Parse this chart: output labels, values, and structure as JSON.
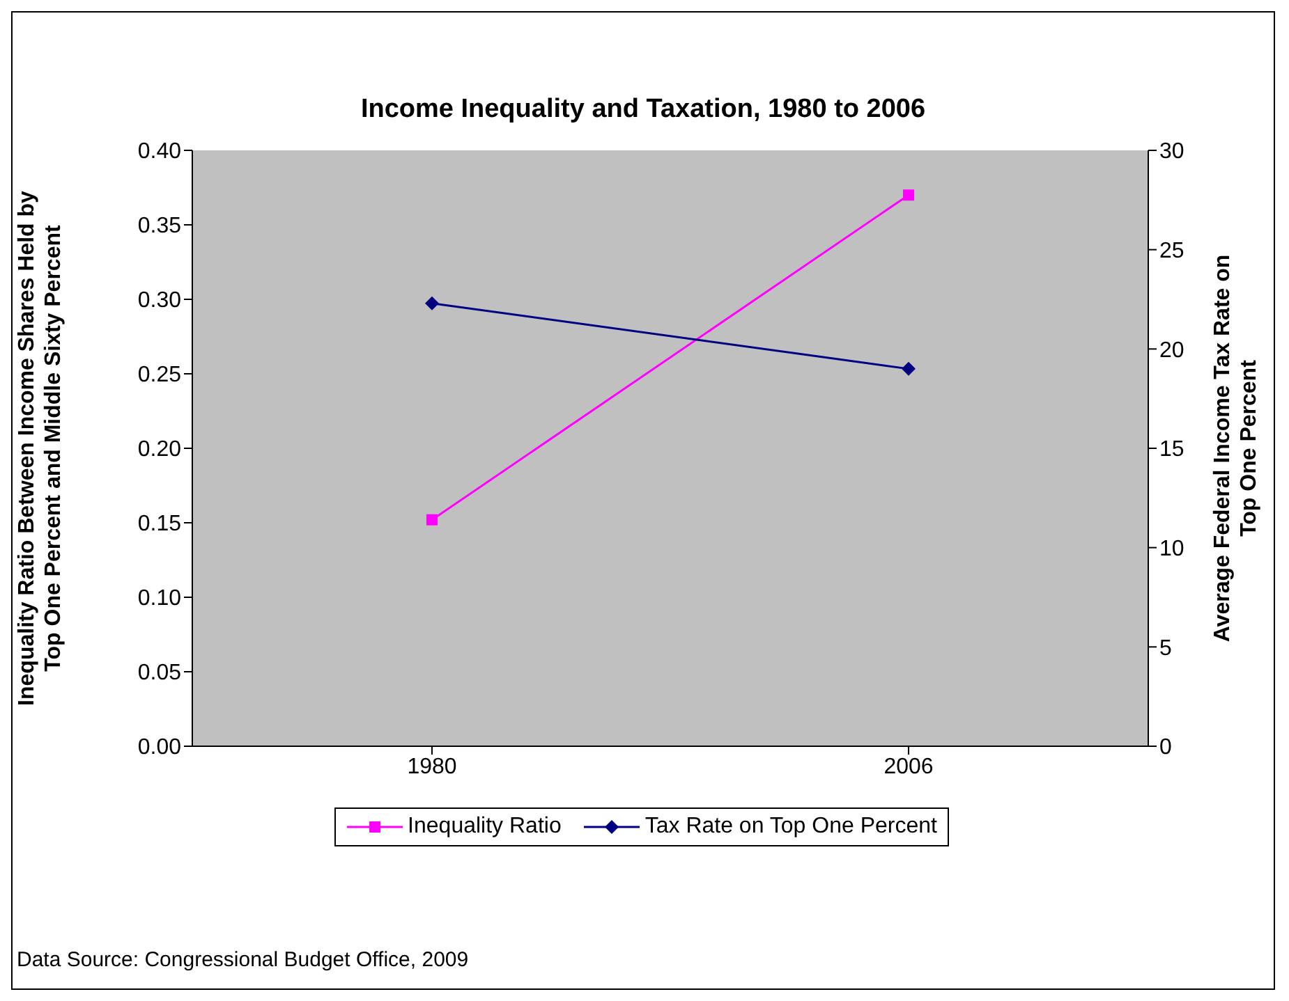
{
  "chart_data": {
    "type": "line",
    "title": "Income Inequality and Taxation, 1980 to 2006",
    "ylabel": "Inequality Ratio Between Income Shares Held by\nTop One Percent and Middle Sixty Percent",
    "y2label": "Average Federal Income Tax Rate on\nTop One Percent",
    "categories": [
      "1980",
      "2006"
    ],
    "series": [
      {
        "name": "Inequality Ratio",
        "color": "#ff00ff",
        "values": [
          0.152,
          0.37
        ],
        "marker": "square"
      },
      {
        "name": "Tax Rate on Top One Percent",
        "color": "#000080",
        "values": [
          22.3,
          19.0
        ],
        "marker": "diamond",
        "axis": "y2"
      }
    ],
    "ylim": [
      0,
      0.4
    ],
    "yticks": [
      {
        "value": 0,
        "label": "0.00"
      },
      {
        "value": 0.05,
        "label": "0.05"
      },
      {
        "value": 0.1,
        "label": "0.10"
      },
      {
        "value": 0.15,
        "label": "0.15"
      },
      {
        "value": 0.2,
        "label": "0.20"
      },
      {
        "value": 0.25,
        "label": "0.25"
      },
      {
        "value": 0.3,
        "label": "0.30"
      },
      {
        "value": 0.35,
        "label": "0.35"
      },
      {
        "value": 0.4,
        "label": "0.40"
      }
    ],
    "y2lim": [
      0,
      30
    ],
    "y2ticks": [
      0,
      5,
      10,
      15,
      20,
      25,
      30
    ],
    "grid": false,
    "legend": "bottom",
    "line_style": "solid",
    "annotations": [
      "Data Source: Congressional Budget Office, 2009"
    ]
  }
}
